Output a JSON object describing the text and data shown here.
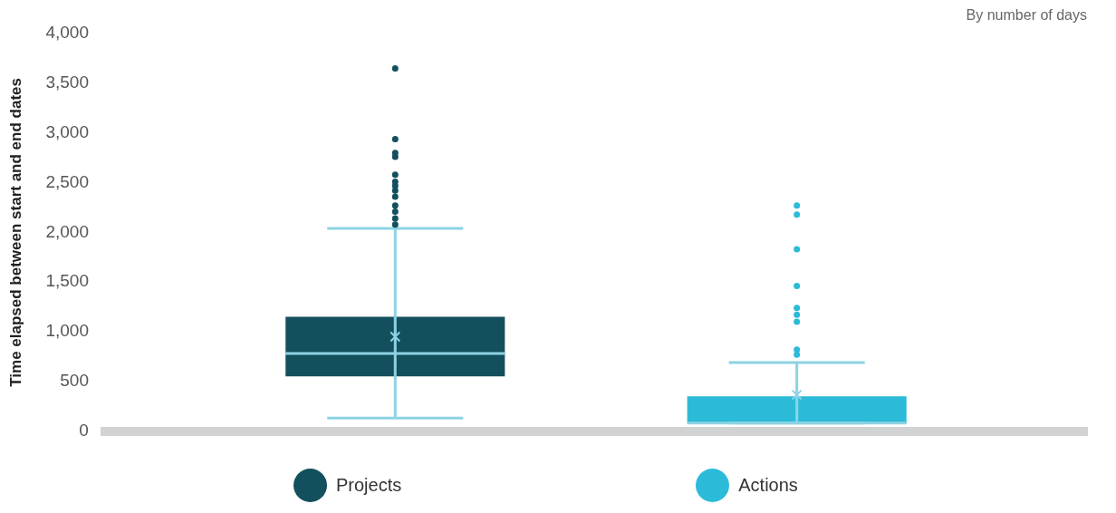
{
  "chart_data": {
    "type": "box",
    "subtitle": "By number of days",
    "ylabel": "Time elapsed between start and end dates",
    "categories": [
      null
    ],
    "series": [
      {
        "name": "Projects",
        "color": "#134f5c",
        "boxes": [
          {
            "low": 130,
            "q1": 550,
            "median": 780,
            "q3": 1150,
            "high": 2040,
            "mean": 950,
            "outliers": [
              2080,
              2140,
              2210,
              2270,
              2360,
              2420,
              2470,
              2510,
              2580,
              2760,
              2800,
              2940,
              3650
            ]
          }
        ]
      },
      {
        "name": "Actions",
        "color": "#2bbbd8",
        "boxes": [
          {
            "low": 80,
            "q1": 80,
            "median": 80,
            "q3": 350,
            "high": 690,
            "mean": 365,
            "outliers": [
              770,
              820,
              1100,
              1170,
              1240,
              1460,
              1830,
              2180,
              2270
            ]
          }
        ]
      }
    ],
    "ylim": [
      0,
      4000
    ],
    "yticks": [
      {
        "value": 0,
        "label": "0"
      },
      {
        "value": 500,
        "label": "500"
      },
      {
        "value": 1000,
        "label": "1,000"
      },
      {
        "value": 1500,
        "label": "1,500"
      },
      {
        "value": 2000,
        "label": "2,000"
      },
      {
        "value": 2500,
        "label": "2,500"
      },
      {
        "value": 3000,
        "label": "3,000"
      },
      {
        "value": 3500,
        "label": "3,500"
      },
      {
        "value": 4000,
        "label": "4,000"
      }
    ],
    "grid": false,
    "legend": "bottom",
    "tick_labels": "y"
  }
}
